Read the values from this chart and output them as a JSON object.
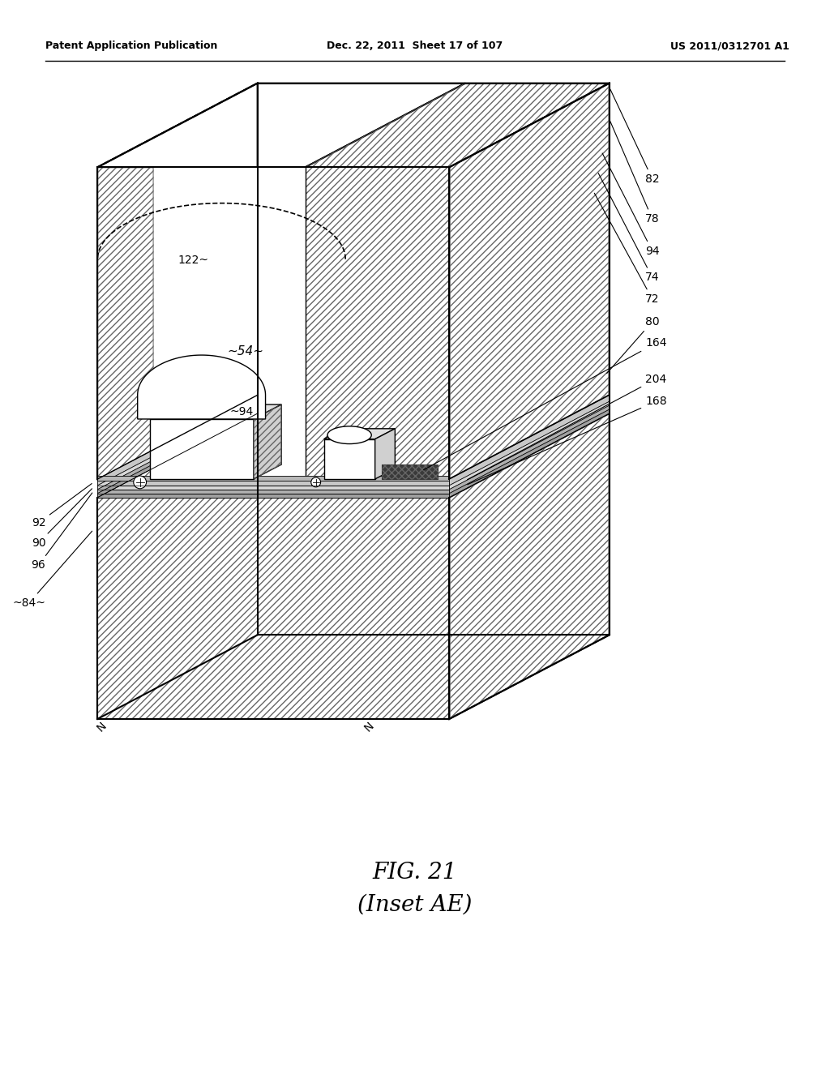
{
  "header_left": "Patent Application Publication",
  "header_mid": "Dec. 22, 2011  Sheet 17 of 107",
  "header_right": "US 2011/0312701 A1",
  "fig_label": "FIG. 21",
  "fig_sublabel": "(Inset AE)",
  "background_color": "#ffffff",
  "line_color": "#000000"
}
